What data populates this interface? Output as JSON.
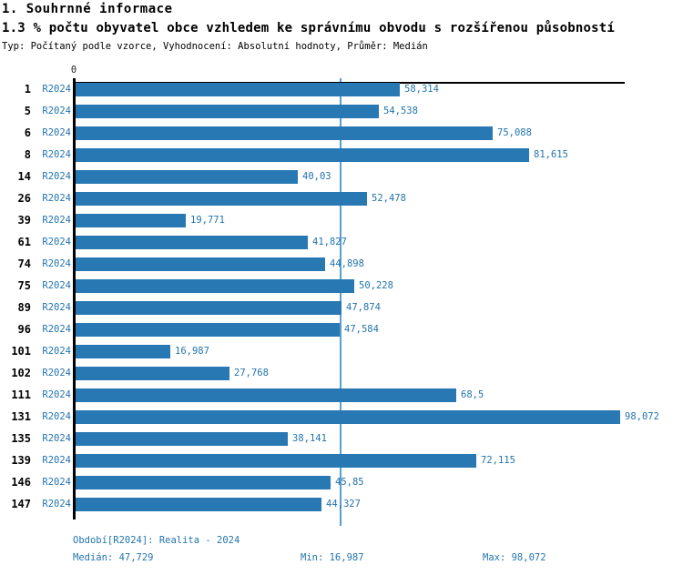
{
  "header": {
    "title": "1. Souhrnné informace",
    "subtitle": "1.3 % počtu obyvatel obce vzhledem ke správnímu obvodu s rozšířenou působností",
    "meta": "Typ: Počítaný podle vzorce, Vyhodnocení: Absolutní hodnoty, Průměr: Medián"
  },
  "chart_data": {
    "type": "bar",
    "orientation": "horizontal",
    "x_axis": {
      "min": 0,
      "max": 98.072,
      "origin_label": "0"
    },
    "period_label": "R2024",
    "categories": [
      "1",
      "5",
      "6",
      "8",
      "14",
      "26",
      "39",
      "61",
      "74",
      "75",
      "89",
      "96",
      "101",
      "102",
      "111",
      "131",
      "135",
      "139",
      "146",
      "147"
    ],
    "values": [
      58.314,
      54.538,
      75.088,
      81.615,
      40.03,
      52.478,
      19.771,
      41.827,
      44.898,
      50.228,
      47.874,
      47.584,
      16.987,
      27.768,
      68.5,
      98.072,
      38.141,
      72.115,
      45.85,
      44.327
    ],
    "value_labels": [
      "58,314",
      "54,538",
      "75,088",
      "81,615",
      "40,03",
      "52,478",
      "19,771",
      "41,827",
      "44,898",
      "50,228",
      "47,874",
      "47,584",
      "16,987",
      "27,768",
      "68,5",
      "98,072",
      "38,141",
      "72,115",
      "45,85",
      "44,327"
    ],
    "median": {
      "value": 47.729,
      "label": "47,729"
    },
    "legend_position": "none",
    "grid": false,
    "colors": {
      "bar": "#2878B4",
      "median_line": "#55A0D0",
      "label_text": "#2374AE"
    }
  },
  "footer": {
    "period": "Období[R2024]: Realita - 2024",
    "median": "Medián: 47,729",
    "min": "Min: 16,987",
    "max": "Max: 98,072"
  }
}
